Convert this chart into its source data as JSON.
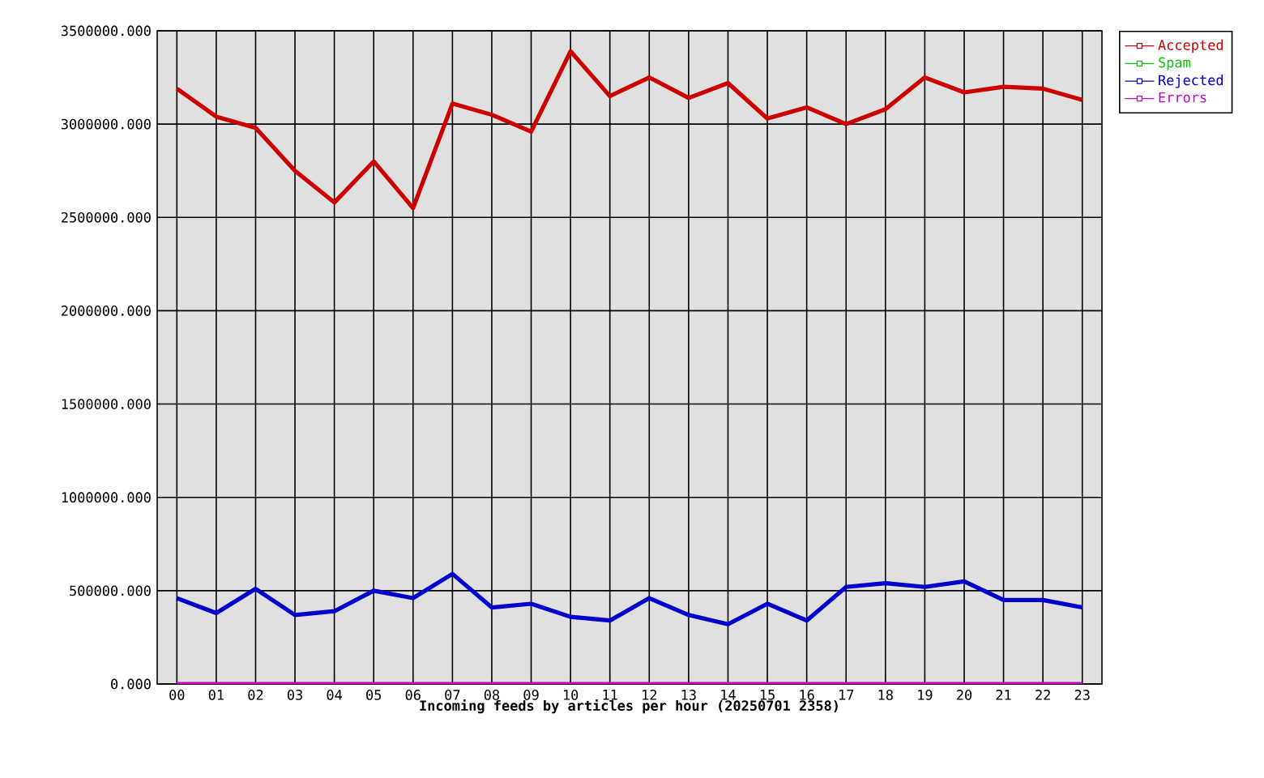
{
  "chart_data": {
    "type": "line",
    "xlabel": "Incoming feeds by articles per hour (20250701 2358)",
    "categories": [
      "00",
      "01",
      "02",
      "03",
      "04",
      "05",
      "06",
      "07",
      "08",
      "09",
      "10",
      "11",
      "12",
      "13",
      "14",
      "15",
      "16",
      "17",
      "18",
      "19",
      "20",
      "21",
      "22",
      "23"
    ],
    "series": [
      {
        "name": "Accepted",
        "color": "#cc0000",
        "values": [
          3190000,
          3040000,
          2980000,
          2750000,
          2580000,
          2800000,
          2550000,
          3110000,
          3050000,
          2960000,
          3390000,
          3150000,
          3250000,
          3140000,
          3220000,
          3030000,
          3090000,
          3000000,
          3080000,
          3250000,
          3170000,
          3200000,
          3190000,
          3130000
        ]
      },
      {
        "name": "Spam",
        "color": "#00cc00",
        "values": [
          null,
          null,
          null,
          null,
          null,
          null,
          null,
          null,
          null,
          null,
          null,
          null,
          null,
          null,
          null,
          null,
          null,
          null,
          null,
          null,
          null,
          null,
          null,
          null
        ]
      },
      {
        "name": "Rejected",
        "color": "#0000cc",
        "values": [
          460000,
          380000,
          510000,
          370000,
          390000,
          500000,
          460000,
          590000,
          410000,
          430000,
          360000,
          340000,
          460000,
          370000,
          320000,
          430000,
          340000,
          520000,
          540000,
          520000,
          550000,
          450000,
          450000,
          410000
        ]
      },
      {
        "name": "Errors",
        "color": "#cc00cc",
        "values": [
          0,
          0,
          0,
          0,
          0,
          0,
          0,
          0,
          0,
          0,
          0,
          0,
          0,
          0,
          0,
          0,
          0,
          0,
          0,
          0,
          0,
          0,
          0,
          0
        ]
      }
    ],
    "ylim": [
      0,
      3500000
    ],
    "yticks": [
      {
        "value": 0,
        "label": "0.000"
      },
      {
        "value": 500000,
        "label": "500000.000"
      },
      {
        "value": 1000000,
        "label": "1000000.000"
      },
      {
        "value": 1500000,
        "label": "1500000.000"
      },
      {
        "value": 2000000,
        "label": "2000000.000"
      },
      {
        "value": 2500000,
        "label": "2500000.000"
      },
      {
        "value": 3000000,
        "label": "3000000.000"
      },
      {
        "value": 3500000,
        "label": "3500000.000"
      }
    ],
    "grid": true,
    "legend": "top right"
  }
}
